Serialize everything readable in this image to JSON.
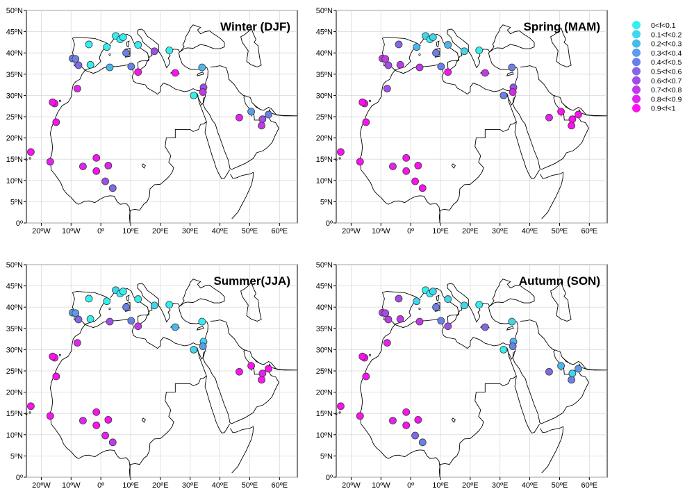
{
  "panels": [
    {
      "title": "Winter (DJF)"
    },
    {
      "title": "Spring (MAM)"
    },
    {
      "title": "Summer(JJA)"
    },
    {
      "title": "Autumn (SON)"
    }
  ],
  "axes": {
    "x_ticks": [
      "20ºW",
      "10ºW",
      "0º",
      "10ºE",
      "20ºE",
      "30ºE",
      "40ºE",
      "50ºE",
      "60ºE"
    ],
    "x_tick_values": [
      -20,
      -10,
      0,
      10,
      20,
      30,
      40,
      50,
      60
    ],
    "y_ticks": [
      "0º",
      "5ºN",
      "10ºN",
      "15ºN",
      "20ºN",
      "25ºN",
      "30ºN",
      "35ºN",
      "40ºN",
      "45ºN",
      "50ºN"
    ],
    "y_tick_values": [
      0,
      5,
      10,
      15,
      20,
      25,
      30,
      35,
      40,
      45,
      50
    ],
    "lon_range": [
      -25,
      66
    ],
    "lat_range": [
      0,
      50
    ]
  },
  "legend": {
    "placement": "right",
    "entries": [
      {
        "label": "0<f<0.1",
        "color": "#33f0f0"
      },
      {
        "label": "0.1<f<0.2",
        "color": "#3fd6ee"
      },
      {
        "label": "0.2<f<0.3",
        "color": "#4ab8ec"
      },
      {
        "label": "0.3<f<0.4",
        "color": "#5a9cea"
      },
      {
        "label": "0.4<f<0.5",
        "color": "#6a80e8"
      },
      {
        "label": "0.5<f<0.6",
        "color": "#8466e6"
      },
      {
        "label": "0.6<f<0.7",
        "color": "#a04ee6"
      },
      {
        "label": "0.7<f<0.8",
        "color": "#c03ae8"
      },
      {
        "label": "0.8<f<0.9",
        "color": "#e024ec"
      },
      {
        "label": "0.9<f<1",
        "color": "#ff10f0"
      }
    ]
  },
  "chart_data": {
    "type": "scatter",
    "stations": [
      {
        "lon": 5.0,
        "lat": 44.0
      },
      {
        "lon": 6.5,
        "lat": 43.2
      },
      {
        "lon": 7.5,
        "lat": 43.7
      },
      {
        "lon": -4.0,
        "lat": 42.0
      },
      {
        "lon": 2.0,
        "lat": 41.4
      },
      {
        "lon": 12.5,
        "lat": 41.9
      },
      {
        "lon": 23.0,
        "lat": 40.6
      },
      {
        "lon": 8.5,
        "lat": 40.0
      },
      {
        "lon": 18.0,
        "lat": 40.4
      },
      {
        "lon": -3.5,
        "lat": 37.2
      },
      {
        "lon": -9.5,
        "lat": 38.7
      },
      {
        "lon": -8.5,
        "lat": 38.6
      },
      {
        "lon": -7.5,
        "lat": 37.1
      },
      {
        "lon": 3.0,
        "lat": 36.6
      },
      {
        "lon": 10.2,
        "lat": 36.8
      },
      {
        "lon": 12.5,
        "lat": 35.5
      },
      {
        "lon": 25.0,
        "lat": 35.3
      },
      {
        "lon": 34.0,
        "lat": 36.6
      },
      {
        "lon": 34.5,
        "lat": 31.9
      },
      {
        "lon": 34.3,
        "lat": 30.8
      },
      {
        "lon": 31.2,
        "lat": 30.0
      },
      {
        "lon": -7.9,
        "lat": 31.6
      },
      {
        "lon": -15.5,
        "lat": 28.1
      },
      {
        "lon": -16.2,
        "lat": 28.4
      },
      {
        "lon": -15.0,
        "lat": 23.7
      },
      {
        "lon": 46.5,
        "lat": 24.8
      },
      {
        "lon": 50.5,
        "lat": 26.2
      },
      {
        "lon": 54.3,
        "lat": 24.4
      },
      {
        "lon": 54.0,
        "lat": 22.9
      },
      {
        "lon": 56.3,
        "lat": 25.5
      },
      {
        "lon": -23.5,
        "lat": 16.7
      },
      {
        "lon": -17.0,
        "lat": 14.4
      },
      {
        "lon": -6.0,
        "lat": 13.3
      },
      {
        "lon": -1.5,
        "lat": 15.3
      },
      {
        "lon": -1.5,
        "lat": 12.2
      },
      {
        "lon": 2.5,
        "lat": 13.5
      },
      {
        "lon": 1.5,
        "lat": 9.8
      },
      {
        "lon": 4.0,
        "lat": 8.2
      }
    ],
    "class_index": {
      "Winter (DJF)": [
        0,
        0,
        0,
        0,
        0,
        0,
        0,
        4,
        6,
        0,
        4,
        4,
        5,
        2,
        4,
        9,
        9,
        2,
        6,
        7,
        0,
        8,
        9,
        9,
        9,
        8,
        3,
        6,
        7,
        4,
        9,
        8,
        8,
        9,
        9,
        8,
        6,
        5
      ],
      "Spring (MAM)": [
        1,
        0,
        1,
        5,
        2,
        2,
        0,
        4,
        1,
        7,
        7,
        7,
        6,
        7,
        4,
        9,
        7,
        4,
        6,
        8,
        4,
        6,
        9,
        9,
        9,
        8,
        9,
        9,
        9,
        9,
        9,
        9,
        8,
        9,
        9,
        9,
        9,
        9
      ],
      "Summer(JJA)": [
        1,
        0,
        0,
        0,
        0,
        0,
        0,
        4,
        1,
        0,
        3,
        3,
        5,
        6,
        4,
        7,
        2,
        0,
        1,
        3,
        1,
        8,
        9,
        9,
        9,
        9,
        9,
        8,
        9,
        9,
        9,
        9,
        8,
        9,
        9,
        9,
        8,
        7
      ],
      "Autumn (SON)": [
        0,
        0,
        1,
        6,
        1,
        1,
        0,
        4,
        1,
        7,
        7,
        6,
        7,
        7,
        4,
        6,
        5,
        1,
        2,
        4,
        0,
        8,
        9,
        9,
        9,
        5,
        2,
        1,
        4,
        3,
        9,
        9,
        8,
        9,
        9,
        9,
        5,
        4
      ]
    }
  }
}
